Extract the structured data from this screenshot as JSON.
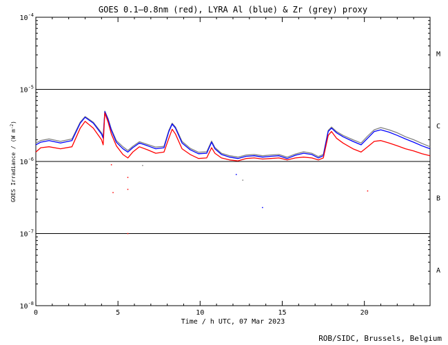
{
  "chart_data": {
    "type": "line",
    "title": "GOES 0.1–0.8nm (red), LYRA Al (blue) & Zr (grey) proxy",
    "xlabel": "Time / h UTC, 07 Mar 2023",
    "ylabel": "GOES Irradiance / (W m",
    "ylabel_sup": "-2",
    "ylabel_end": ")",
    "xlim": [
      0,
      24
    ],
    "ylim": [
      1e-08,
      0.0001
    ],
    "yscale": "log",
    "x_ticks": [
      0,
      5,
      10,
      15,
      20
    ],
    "x_tick_labels": [
      "0",
      "5",
      "10",
      "15",
      "20"
    ],
    "y_ticks": [
      {
        "base": "10",
        "exp": "-8",
        "value": 1e-08
      },
      {
        "base": "10",
        "exp": "-7",
        "value": 1e-07
      },
      {
        "base": "10",
        "exp": "-6",
        "value": 1e-06
      },
      {
        "base": "10",
        "exp": "-5",
        "value": 1e-05
      },
      {
        "base": "10",
        "exp": "-4",
        "value": 0.0001
      }
    ],
    "class_lines": [
      1e-07,
      1e-06,
      1e-05
    ],
    "flare_classes": [
      {
        "label": "A",
        "value": 3.16e-08
      },
      {
        "label": "B",
        "value": 3.16e-07
      },
      {
        "label": "C",
        "value": 3.16e-06
      },
      {
        "label": "M",
        "value": 3.16e-05
      }
    ],
    "series": [
      {
        "name": "GOES 0.1–0.8nm",
        "color": "#ff0000",
        "x": [
          0,
          0.3,
          0.8,
          1.5,
          2.2,
          2.7,
          3.0,
          3.5,
          4.0,
          4.1,
          4.2,
          4.4,
          4.6,
          4.9,
          5.3,
          5.6,
          5.9,
          6.3,
          6.8,
          7.3,
          7.8,
          8.1,
          8.3,
          8.5,
          8.9,
          9.4,
          9.9,
          10.4,
          10.7,
          10.9,
          11.3,
          11.8,
          12.3,
          12.8,
          13.3,
          13.8,
          14.3,
          14.8,
          15.3,
          15.8,
          16.3,
          16.8,
          17.2,
          17.5,
          17.8,
          18.0,
          18.3,
          18.7,
          19.3,
          19.8,
          20.2,
          20.6,
          21.0,
          21.5,
          22.0,
          22.5,
          23.0,
          23.5,
          24.0
        ],
        "y": [
          1.35e-06,
          1.55e-06,
          1.6e-06,
          1.5e-06,
          1.6e-06,
          2.9e-06,
          3.6e-06,
          2.9e-06,
          2e-06,
          1.7e-06,
          4.7e-06,
          3.5e-06,
          2.4e-06,
          1.65e-06,
          1.25e-06,
          1.12e-06,
          1.35e-06,
          1.6e-06,
          1.45e-06,
          1.3e-06,
          1.35e-06,
          2.1e-06,
          2.8e-06,
          2.4e-06,
          1.5e-06,
          1.25e-06,
          1.1e-06,
          1.12e-06,
          1.55e-06,
          1.3e-06,
          1.12e-06,
          1.05e-06,
          1.02e-06,
          1.1e-06,
          1.12e-06,
          1.08e-06,
          1.1e-06,
          1.12e-06,
          1.05e-06,
          1.12e-06,
          1.15e-06,
          1.12e-06,
          1.05e-06,
          1.12e-06,
          2.3e-06,
          2.6e-06,
          2.1e-06,
          1.8e-06,
          1.5e-06,
          1.35e-06,
          1.6e-06,
          1.9e-06,
          1.95e-06,
          1.8e-06,
          1.65e-06,
          1.5e-06,
          1.4e-06,
          1.28e-06,
          1.2e-06
        ]
      },
      {
        "name": "LYRA Al",
        "color": "#0000ff",
        "x": [
          0,
          0.3,
          0.8,
          1.5,
          2.2,
          2.7,
          3.0,
          3.5,
          4.0,
          4.1,
          4.2,
          4.4,
          4.6,
          4.9,
          5.3,
          5.6,
          5.9,
          6.3,
          6.8,
          7.3,
          7.8,
          8.1,
          8.3,
          8.5,
          8.9,
          9.4,
          9.9,
          10.4,
          10.7,
          10.9,
          11.3,
          11.8,
          12.3,
          12.8,
          13.3,
          13.8,
          14.3,
          14.8,
          15.3,
          15.8,
          16.3,
          16.8,
          17.2,
          17.5,
          17.8,
          18.0,
          18.3,
          18.7,
          19.3,
          19.8,
          20.2,
          20.6,
          21.0,
          21.5,
          22.0,
          22.5,
          23.0,
          23.5,
          24.0
        ],
        "y": [
          1.7e-06,
          1.85e-06,
          1.95e-06,
          1.8e-06,
          1.95e-06,
          3.4e-06,
          4.1e-06,
          3.4e-06,
          2.4e-06,
          2.1e-06,
          4.9e-06,
          3.8e-06,
          2.7e-06,
          1.85e-06,
          1.5e-06,
          1.35e-06,
          1.55e-06,
          1.8e-06,
          1.65e-06,
          1.5e-06,
          1.55e-06,
          2.6e-06,
          3.3e-06,
          2.9e-06,
          1.8e-06,
          1.45e-06,
          1.28e-06,
          1.3e-06,
          1.85e-06,
          1.5e-06,
          1.25e-06,
          1.15e-06,
          1.1e-06,
          1.18e-06,
          1.2e-06,
          1.15e-06,
          1.18e-06,
          1.2e-06,
          1.1e-06,
          1.22e-06,
          1.3e-06,
          1.25e-06,
          1.12e-06,
          1.2e-06,
          2.6e-06,
          2.9e-06,
          2.5e-06,
          2.2e-06,
          1.9e-06,
          1.7e-06,
          2.1e-06,
          2.6e-06,
          2.75e-06,
          2.55e-06,
          2.3e-06,
          2.05e-06,
          1.85e-06,
          1.65e-06,
          1.5e-06
        ]
      },
      {
        "name": "Zr",
        "color": "#808080",
        "x": [
          0,
          0.3,
          0.8,
          1.5,
          2.2,
          2.7,
          3.0,
          3.5,
          4.0,
          4.1,
          4.2,
          4.4,
          4.6,
          4.9,
          5.3,
          5.6,
          5.9,
          6.3,
          6.8,
          7.3,
          7.8,
          8.1,
          8.3,
          8.5,
          8.9,
          9.4,
          9.9,
          10.4,
          10.7,
          10.9,
          11.3,
          11.8,
          12.3,
          12.8,
          13.3,
          13.8,
          14.3,
          14.8,
          15.3,
          15.8,
          16.3,
          16.8,
          17.2,
          17.5,
          17.8,
          18.0,
          18.3,
          18.7,
          19.3,
          19.8,
          20.2,
          20.6,
          21.0,
          21.5,
          22.0,
          22.5,
          23.0,
          23.5,
          24.0
        ],
        "y": [
          1.8e-06,
          1.95e-06,
          2.05e-06,
          1.9e-06,
          2.05e-06,
          3.5e-06,
          4.2e-06,
          3.5e-06,
          2.5e-06,
          2.2e-06,
          5e-06,
          3.9e-06,
          2.8e-06,
          1.95e-06,
          1.6e-06,
          1.42e-06,
          1.62e-06,
          1.88e-06,
          1.72e-06,
          1.58e-06,
          1.62e-06,
          2.7e-06,
          3.4e-06,
          3e-06,
          1.9e-06,
          1.52e-06,
          1.34e-06,
          1.36e-06,
          1.92e-06,
          1.56e-06,
          1.3e-06,
          1.2e-06,
          1.15e-06,
          1.23e-06,
          1.25e-06,
          1.2e-06,
          1.23e-06,
          1.25e-06,
          1.15e-06,
          1.27e-06,
          1.36e-06,
          1.3e-06,
          1.17e-06,
          1.25e-06,
          2.7e-06,
          3e-06,
          2.6e-06,
          2.3e-06,
          2e-06,
          1.8e-06,
          2.25e-06,
          2.75e-06,
          2.95e-06,
          2.75e-06,
          2.5e-06,
          2.2e-06,
          2e-06,
          1.78e-06,
          1.6e-06
        ]
      }
    ],
    "scatter_points": [
      {
        "color": "#ff0000",
        "x": 4.6,
        "y": 9e-07
      },
      {
        "color": "#ff0000",
        "x": 5.6,
        "y": 6e-07
      },
      {
        "color": "#ff0000",
        "x": 5.6,
        "y": 4.1e-07
      },
      {
        "color": "#ff0000",
        "x": 4.7,
        "y": 3.7e-07
      },
      {
        "color": "#0000ff",
        "x": 13.8,
        "y": 2.3e-07
      },
      {
        "color": "#0000ff",
        "x": 12.2,
        "y": 6.6e-07
      },
      {
        "color": "#808080",
        "x": 6.5,
        "y": 8.8e-07
      },
      {
        "color": "#ff0000",
        "x": 20.2,
        "y": 3.9e-07
      },
      {
        "color": "#ff0000",
        "x": 5.6,
        "y": 1e-07
      },
      {
        "color": "#808080",
        "x": 12.6,
        "y": 5.5e-07
      }
    ]
  },
  "footer": {
    "credit": "ROB/SIDC, Brussels, Belgium"
  }
}
